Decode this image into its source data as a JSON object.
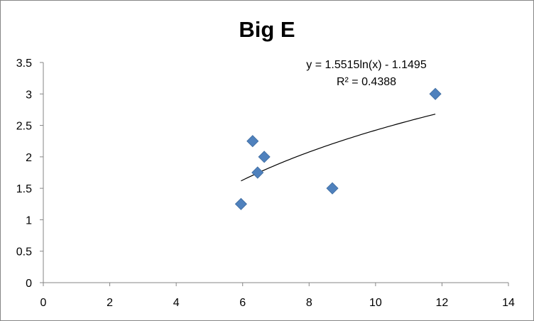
{
  "chart_data": {
    "type": "scatter",
    "title": "Big E",
    "xlabel": "",
    "ylabel": "",
    "xlim": [
      0,
      14
    ],
    "ylim": [
      0,
      3.5
    ],
    "x_ticks": [
      "0",
      "2",
      "4",
      "6",
      "8",
      "10",
      "12",
      "14"
    ],
    "y_ticks": [
      "0",
      "0.5",
      "1",
      "1.5",
      "2",
      "2.5",
      "3",
      "3.5"
    ],
    "grid": false,
    "legend": "none",
    "marker_color": "#4f81bd",
    "marker": "diamond",
    "series": [
      {
        "points": [
          {
            "x": 5.95,
            "y": 1.25
          },
          {
            "x": 6.3,
            "y": 2.25
          },
          {
            "x": 6.45,
            "y": 1.75
          },
          {
            "x": 6.65,
            "y": 2.0
          },
          {
            "x": 8.7,
            "y": 1.5
          },
          {
            "x": 11.8,
            "y": 3.0
          }
        ]
      }
    ],
    "trendline": {
      "type": "logarithmic",
      "a": 1.5515,
      "b": -1.1495,
      "x_range": [
        5.95,
        11.8
      ],
      "equation": "y = 1.5515ln(x) - 1.1495",
      "r_squared": "R² = 0.4388"
    }
  }
}
